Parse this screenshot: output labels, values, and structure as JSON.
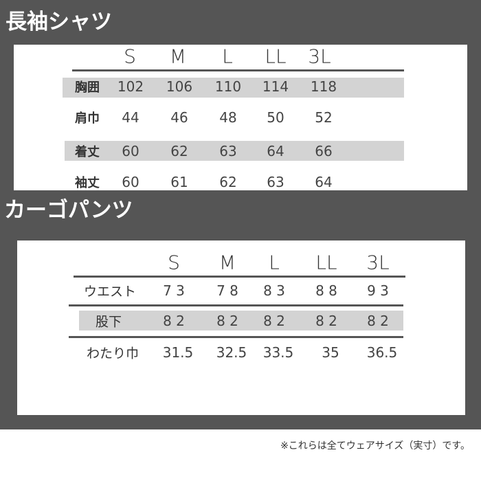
{
  "shirt": {
    "title": "長袖シャツ",
    "sizes": [
      "S",
      "M",
      "L",
      "LL",
      "3L"
    ],
    "rows": [
      {
        "label": "胸囲",
        "values": [
          "102",
          "106",
          "110",
          "114",
          "118"
        ],
        "shaded": true
      },
      {
        "label": "肩巾",
        "values": [
          "44",
          "46",
          "48",
          "50",
          "52"
        ],
        "shaded": false
      },
      {
        "label": "着丈",
        "values": [
          "60",
          "62",
          "63",
          "64",
          "66"
        ],
        "shaded": true
      },
      {
        "label": "袖丈",
        "values": [
          "60",
          "61",
          "62",
          "63",
          "64"
        ],
        "shaded": false
      }
    ]
  },
  "pants": {
    "title": "カーゴパンツ",
    "sizes": [
      "S",
      "M",
      "L",
      "LL",
      "3L"
    ],
    "rows": [
      {
        "label": "ウエスト",
        "values": [
          "7 3",
          "7 8",
          "8 3",
          "8 8",
          "9 3"
        ],
        "shaded": false
      },
      {
        "label": "股下",
        "values": [
          "8 2",
          "8 2",
          "8 2",
          "8 2",
          "8 2"
        ],
        "shaded": true
      },
      {
        "label": "わたり巾",
        "values": [
          "31.5",
          "32.5",
          "33.5",
          "35",
          "36.5"
        ],
        "shaded": false
      }
    ]
  },
  "note": "※これらは全てウェアサイズ（実寸）です。",
  "colors": {
    "background": "#555555",
    "panel": "#ffffff",
    "shade": "#d3d3d3"
  }
}
